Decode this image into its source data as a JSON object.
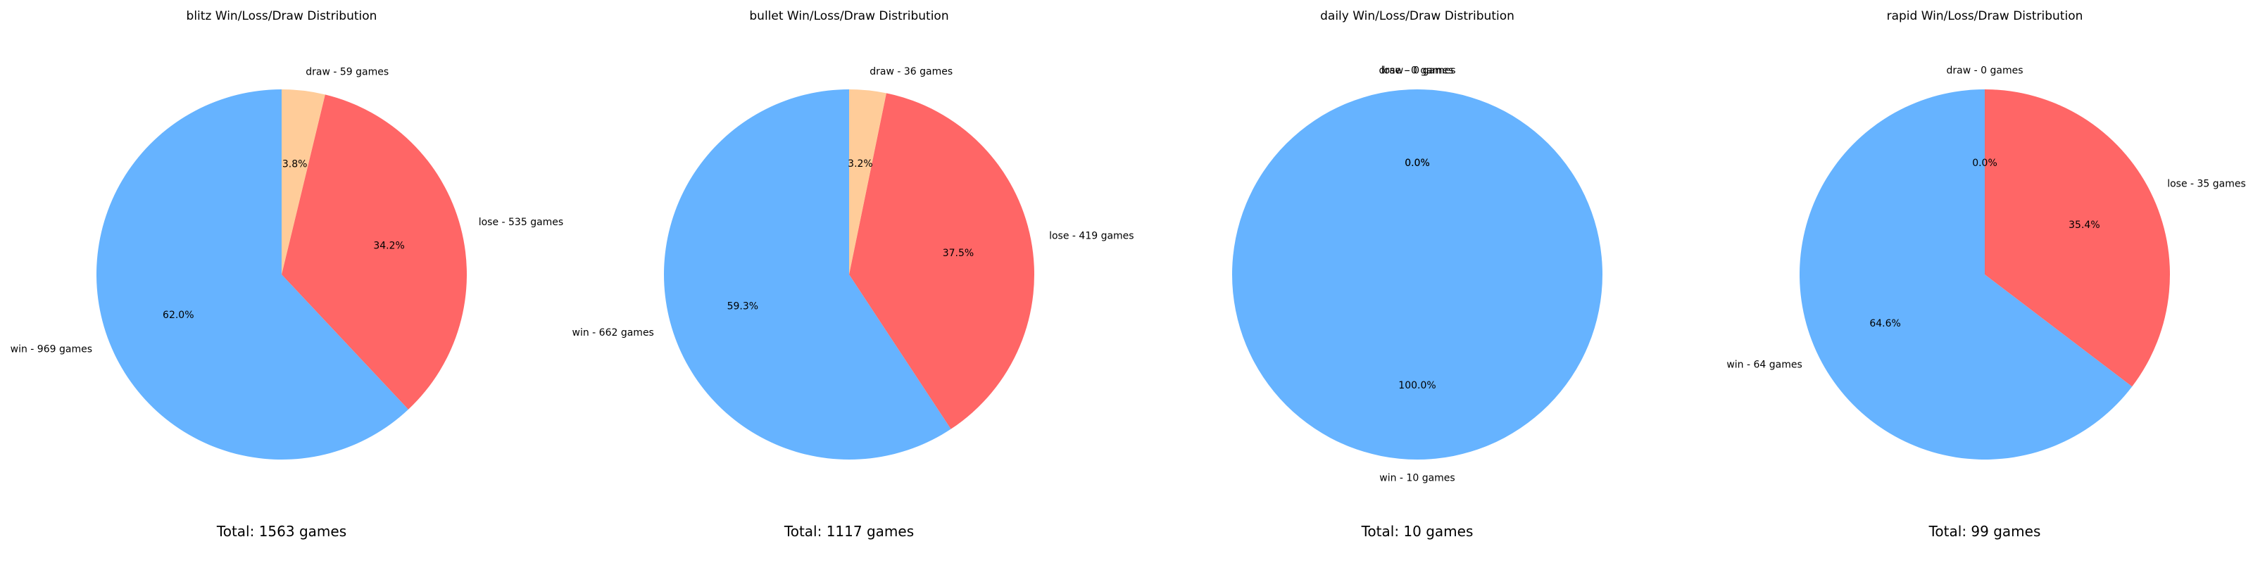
{
  "chart_data": [
    {
      "type": "pie",
      "title": "blitz Win/Loss/Draw Distribution",
      "labels": [
        "win - 969 games",
        "lose - 535 games",
        "draw - 59 games"
      ],
      "values": [
        969,
        535,
        59
      ],
      "percent_labels": [
        "62.0%",
        "34.2%",
        "3.8%"
      ],
      "colors": [
        "#66b3ff",
        "#ff6666",
        "#ffcc99"
      ],
      "footer": "Total: 1563 games"
    },
    {
      "type": "pie",
      "title": "bullet Win/Loss/Draw Distribution",
      "labels": [
        "win - 662 games",
        "lose - 419 games",
        "draw - 36 games"
      ],
      "values": [
        662,
        419,
        36
      ],
      "percent_labels": [
        "59.3%",
        "37.5%",
        "3.2%"
      ],
      "colors": [
        "#66b3ff",
        "#ff6666",
        "#ffcc99"
      ],
      "footer": "Total: 1117 games"
    },
    {
      "type": "pie",
      "title": "daily Win/Loss/Draw Distribution",
      "labels": [
        "win - 10 games",
        "lose - 0 games",
        "draw - 0 games"
      ],
      "values": [
        10,
        0,
        0
      ],
      "percent_labels": [
        "100.0%",
        "0.0%",
        "0.0%"
      ],
      "colors": [
        "#66b3ff",
        "#ff6666",
        "#ffcc99"
      ],
      "footer": "Total: 10 games"
    },
    {
      "type": "pie",
      "title": "rapid Win/Loss/Draw Distribution",
      "labels": [
        "win - 64 games",
        "lose - 35 games",
        "draw - 0 games"
      ],
      "values": [
        64,
        35,
        0
      ],
      "percent_labels": [
        "64.6%",
        "35.4%",
        "0.0%"
      ],
      "colors": [
        "#66b3ff",
        "#ff6666",
        "#ffcc99"
      ],
      "footer": "Total: 99 games"
    }
  ]
}
